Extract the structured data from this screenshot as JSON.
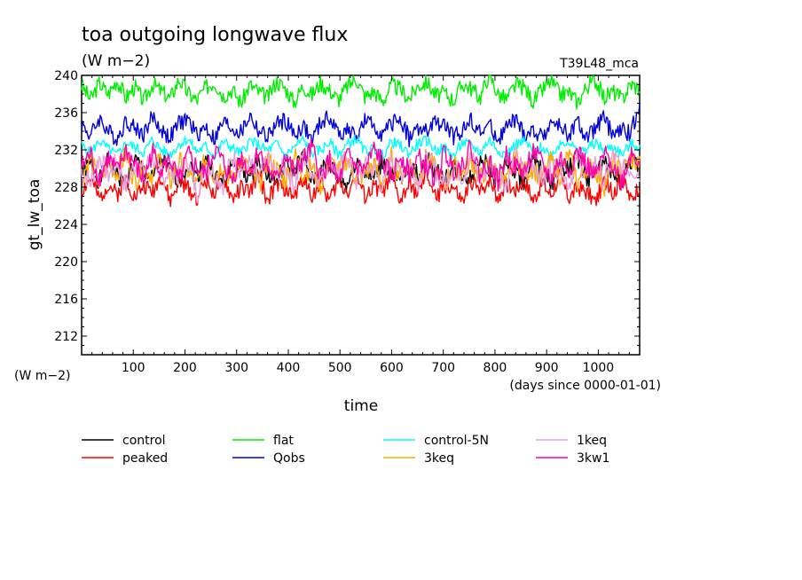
{
  "chart_data": {
    "type": "line",
    "title": "toa outgoing longwave flux",
    "subtitle": "(W m−2)",
    "run_label": "T39L48_mca",
    "ylabel": "gt_lw_toa",
    "yunit": "(W m−2)",
    "xlabel": "time",
    "xunit": "(days since 0000-01-01)",
    "xlim": [
      0,
      1080
    ],
    "ylim": [
      210,
      240
    ],
    "xticks": [
      100,
      200,
      300,
      400,
      500,
      600,
      700,
      800,
      900,
      1000
    ],
    "yticks": [
      212,
      216,
      220,
      224,
      228,
      232,
      236,
      240
    ],
    "grid": false,
    "legend_position": "bottom",
    "series": [
      {
        "name": "control",
        "color": "#000000",
        "mean": 229.5,
        "amp": 1.6,
        "values": [
          229.5,
          230.5,
          228.6,
          230.8,
          229.2,
          228.4,
          230.9,
          229.8,
          228.7,
          231.0,
          229.6,
          228.8,
          230.4,
          229.1,
          231.2,
          229.4,
          228.3,
          230.7,
          229.9,
          228.9,
          231.1,
          229.3,
          228.5,
          230.6,
          229.7,
          231.4,
          228.6,
          229.8,
          230.3,
          229.0,
          228.2,
          231.0,
          229.5,
          228.8,
          230.8,
          229.6,
          228.4,
          230.5,
          229.2,
          231.3,
          229.7,
          228.7,
          230.2,
          229.4,
          228.9,
          231.5,
          229.8,
          228.5,
          230.7,
          229.3,
          228.6,
          230.9,
          229.6,
          228.3,
          230.4,
          229.9,
          231.2,
          228.8,
          229.4,
          230.6,
          229.1,
          228.5,
          230.8,
          229.7
        ]
      },
      {
        "name": "peaked",
        "color": "#ff0000",
        "mean": 227.8,
        "amp": 1.4,
        "values": [
          227.6,
          228.9,
          226.6,
          228.4,
          227.2,
          229.0,
          226.9,
          228.2,
          227.5,
          229.3,
          226.4,
          228.6,
          227.9,
          226.8,
          228.8,
          227.3,
          229.1,
          226.7,
          228.0,
          227.4,
          229.4,
          226.5,
          228.3,
          227.8,
          226.9,
          229.0,
          227.1,
          228.5,
          226.6,
          228.7,
          227.5,
          229.2,
          226.8,
          228.1,
          227.6,
          228.9,
          226.5,
          228.4,
          227.2,
          229.5,
          226.7,
          228.2,
          227.9,
          226.3,
          228.6,
          227.4,
          229.0,
          226.9,
          228.3,
          227.7,
          228.8,
          226.6,
          228.5,
          227.1,
          229.3,
          226.8,
          228.0,
          227.5,
          226.4,
          228.7,
          227.2,
          229.1,
          226.6,
          228.3
        ]
      },
      {
        "name": "flat",
        "color": "#00ee00",
        "mean": 238.4,
        "amp": 1.4,
        "values": [
          238.9,
          237.4,
          239.2,
          238.0,
          239.5,
          237.6,
          238.8,
          237.2,
          239.1,
          238.3,
          237.5,
          239.6,
          238.1,
          237.3,
          238.7,
          239.3,
          237.8,
          238.5,
          237.0,
          239.0,
          238.2,
          237.6,
          239.4,
          238.6,
          237.1,
          238.9,
          237.9,
          239.2,
          238.4,
          237.4,
          238.8,
          239.7,
          237.7,
          238.3,
          237.2,
          239.0,
          238.5,
          237.5,
          238.9,
          239.3,
          237.8,
          238.1,
          237.3,
          239.1,
          238.6,
          237.6,
          240.2,
          238.0,
          237.4,
          239.0,
          238.7,
          237.2,
          238.4,
          239.4,
          237.9,
          238.2,
          237.1,
          238.8,
          239.5,
          237.6,
          238.3,
          237.4,
          239.1,
          238.6
        ]
      },
      {
        "name": "Qobs",
        "color": "#0000dd",
        "mean": 234.2,
        "amp": 1.4,
        "values": [
          234.8,
          233.5,
          235.4,
          234.0,
          233.2,
          235.1,
          234.4,
          233.7,
          235.6,
          234.1,
          233.3,
          234.9,
          235.3,
          233.6,
          234.5,
          233.1,
          235.0,
          234.3,
          233.8,
          235.7,
          234.0,
          233.4,
          234.7,
          235.2,
          233.5,
          234.6,
          233.0,
          234.9,
          235.5,
          233.7,
          234.2,
          233.3,
          235.1,
          234.5,
          233.6,
          234.8,
          235.4,
          233.2,
          234.3,
          233.9,
          235.0,
          234.6,
          233.4,
          234.1,
          235.3,
          233.8,
          234.7,
          233.1,
          234.4,
          235.2,
          233.6,
          234.0,
          233.3,
          235.0,
          234.5,
          233.7,
          234.9,
          233.2,
          234.3,
          235.4,
          233.5,
          234.1,
          233.8,
          236.9
        ]
      },
      {
        "name": "control-5N",
        "color": "#00ffff",
        "mean": 232.2,
        "amp": 0.9,
        "values": [
          232.5,
          231.6,
          233.0,
          232.1,
          231.4,
          232.8,
          232.3,
          231.7,
          233.1,
          232.0,
          231.5,
          232.6,
          233.2,
          231.8,
          232.4,
          231.3,
          232.9,
          232.2,
          231.6,
          233.0,
          232.5,
          231.9,
          232.7,
          231.4,
          232.3,
          233.1,
          231.7,
          232.0,
          232.8,
          231.5,
          232.6,
          233.2,
          231.8,
          232.1,
          231.4,
          232.9,
          232.4,
          231.6,
          232.7,
          233.0,
          231.9,
          232.2,
          231.3,
          232.8,
          232.5,
          231.7,
          233.1,
          232.0,
          231.5,
          232.6,
          232.9,
          231.8,
          232.3,
          231.4,
          232.7,
          233.0,
          231.6,
          232.1,
          232.8,
          231.9,
          232.4,
          231.5,
          232.6,
          232.3
        ]
      },
      {
        "name": "3keq",
        "color": "#ffaa00",
        "mean": 229.8,
        "amp": 1.8,
        "values": [
          229.0,
          231.2,
          228.2,
          230.6,
          229.5,
          231.6,
          228.6,
          230.1,
          229.3,
          231.4,
          228.4,
          230.8,
          229.8,
          228.0,
          231.0,
          229.2,
          230.5,
          228.5,
          231.3,
          229.6,
          228.3,
          230.9,
          229.9,
          228.7,
          231.5,
          229.4,
          230.2,
          228.1,
          230.7,
          229.7,
          231.1,
          228.8,
          229.5,
          230.4,
          228.3,
          231.2,
          229.1,
          230.6,
          228.6,
          231.4,
          229.8,
          228.2,
          230.3,
          229.4,
          231.0,
          228.9,
          230.5,
          229.2,
          228.4,
          231.3,
          229.6,
          230.1,
          228.7,
          230.8,
          229.3,
          231.5,
          228.5,
          230.2,
          229.9,
          228.1,
          230.7,
          229.5,
          231.1,
          230.4
        ]
      },
      {
        "name": "1keq",
        "color": "#e8a0dc",
        "mean": 230.0,
        "amp": 1.8,
        "values": [
          229.8,
          228.4,
          231.2,
          229.3,
          230.8,
          228.1,
          230.4,
          229.7,
          231.5,
          228.6,
          230.0,
          229.1,
          231.0,
          227.2,
          230.6,
          229.5,
          228.3,
          231.3,
          229.9,
          230.5,
          228.7,
          231.1,
          229.2,
          230.3,
          228.2,
          231.4,
          229.6,
          228.9,
          230.9,
          229.4,
          231.6,
          228.5,
          230.2,
          229.8,
          228.0,
          231.2,
          229.3,
          230.7,
          228.6,
          231.0,
          229.7,
          228.4,
          230.5,
          229.1,
          231.3,
          228.8,
          230.1,
          229.6,
          228.2,
          231.5,
          229.4,
          230.8,
          228.7,
          230.3,
          229.9,
          228.3,
          231.1,
          229.2,
          230.6,
          228.5,
          231.4,
          229.8,
          230.0,
          229.5
        ]
      },
      {
        "name": "3kw1",
        "color": "#ff00aa",
        "mean": 230.5,
        "amp": 1.8,
        "values": [
          230.2,
          231.6,
          228.9,
          231.2,
          229.6,
          232.0,
          230.4,
          228.7,
          231.8,
          229.9,
          231.0,
          228.5,
          231.5,
          230.1,
          229.3,
          232.1,
          230.6,
          228.8,
          231.3,
          229.7,
          231.9,
          230.0,
          228.6,
          231.7,
          229.5,
          230.8,
          232.2,
          229.1,
          230.9,
          228.4,
          231.4,
          230.3,
          229.8,
          232.0,
          230.7,
          228.9,
          231.6,
          229.4,
          231.1,
          230.2,
          228.7,
          231.8,
          229.9,
          230.5,
          232.3,
          229.2,
          230.8,
          228.6,
          231.5,
          230.1,
          229.6,
          231.9,
          230.4,
          228.8,
          231.2,
          229.7,
          232.0,
          230.3,
          229.0,
          231.4,
          230.6,
          228.5,
          231.7,
          230.9
        ]
      }
    ]
  }
}
